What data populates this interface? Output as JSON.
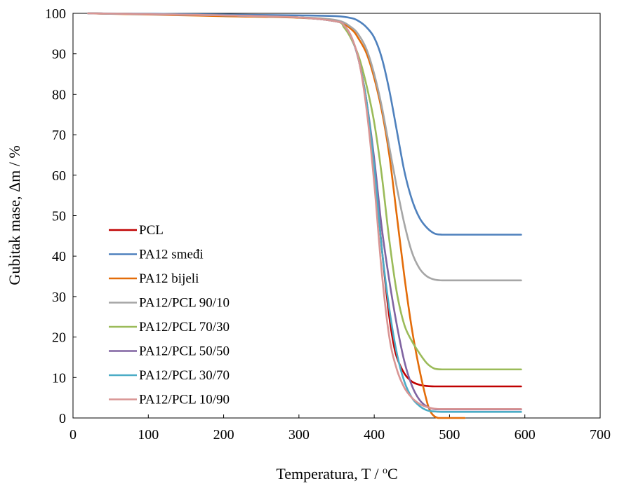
{
  "chart_data": {
    "type": "line",
    "title": "",
    "xlabel": "Temperatura, T / ",
    "xlabel_unit": "C",
    "xlabel_superscript": "o",
    "ylabel": "Gubitak mase, Δm / %",
    "xlim": [
      0,
      700
    ],
    "ylim": [
      0,
      100
    ],
    "xticks": [
      0,
      100,
      200,
      300,
      400,
      500,
      600,
      700
    ],
    "yticks": [
      0,
      10,
      20,
      30,
      40,
      50,
      60,
      70,
      80,
      90,
      100
    ],
    "grid": false,
    "legend_position": "lower-left",
    "series": [
      {
        "name": "PCL",
        "color": "#c00000",
        "x": [
          20,
          100,
          200,
          300,
          350,
          360,
          370,
          380,
          390,
          400,
          405,
          410,
          415,
          420,
          425,
          430,
          440,
          450,
          460,
          470,
          480,
          500,
          550,
          595
        ],
        "y": [
          100,
          99.8,
          99.5,
          99,
          98,
          97,
          94,
          88,
          78,
          62,
          52,
          42,
          33,
          25,
          19,
          15,
          11,
          9,
          8.2,
          7.9,
          7.8,
          7.8,
          7.8,
          7.8
        ]
      },
      {
        "name": "PA12 smeđi",
        "color": "#4f81bd",
        "x": [
          20,
          100,
          200,
          300,
          350,
          370,
          380,
          390,
          400,
          410,
          420,
          430,
          440,
          450,
          460,
          470,
          480,
          490,
          500,
          550,
          595
        ],
        "y": [
          100,
          99.9,
          99.7,
          99.5,
          99.3,
          98.8,
          98,
          96.5,
          94,
          89,
          81,
          71,
          61,
          54,
          49.5,
          47,
          45.6,
          45.3,
          45.3,
          45.3,
          45.3
        ]
      },
      {
        "name": "PA12 bijeli",
        "color": "#e36c09",
        "x": [
          20,
          100,
          200,
          300,
          350,
          370,
          380,
          390,
          400,
          410,
          420,
          430,
          440,
          450,
          460,
          470,
          475,
          480,
          485,
          490,
          500,
          520
        ],
        "y": [
          100,
          99.7,
          99.3,
          98.9,
          98,
          96,
          93.5,
          90,
          84,
          76,
          65,
          50,
          35,
          22,
          12,
          4,
          1.5,
          0.4,
          0,
          0,
          0,
          0
        ]
      },
      {
        "name": "PA12/PCL 90/10",
        "color": "#a6a6a6",
        "x": [
          20,
          100,
          200,
          300,
          350,
          370,
          380,
          390,
          400,
          410,
          420,
          430,
          440,
          450,
          460,
          470,
          480,
          490,
          500,
          550,
          595
        ],
        "y": [
          100,
          99.8,
          99.5,
          99,
          98.3,
          96.5,
          94.5,
          91,
          85,
          77,
          67,
          57,
          48,
          41,
          37,
          35,
          34.2,
          34,
          34,
          34,
          34
        ]
      },
      {
        "name": "PA12/PCL 70/30",
        "color": "#9bbb59",
        "x": [
          20,
          100,
          200,
          300,
          350,
          360,
          370,
          380,
          390,
          400,
          410,
          420,
          430,
          440,
          450,
          460,
          470,
          480,
          490,
          500,
          550,
          595
        ],
        "y": [
          100,
          99.8,
          99.5,
          99,
          98,
          96.5,
          93.5,
          89,
          82,
          73,
          60,
          44,
          31,
          23,
          19,
          16,
          13.5,
          12.2,
          12,
          12,
          12,
          12
        ]
      },
      {
        "name": "PA12/PCL 50/50",
        "color": "#8064a2",
        "x": [
          20,
          100,
          200,
          300,
          350,
          360,
          370,
          380,
          390,
          400,
          410,
          420,
          430,
          440,
          450,
          460,
          470,
          480,
          490,
          500,
          550,
          595
        ],
        "y": [
          100,
          99.8,
          99.5,
          99,
          98,
          97,
          94,
          88,
          78,
          64,
          47,
          34,
          23,
          14,
          8,
          4.5,
          2.8,
          2.2,
          2.1,
          2.1,
          2.1,
          2.1
        ]
      },
      {
        "name": "PA12/PCL 30/70",
        "color": "#4bacc6",
        "x": [
          20,
          100,
          200,
          300,
          350,
          360,
          370,
          380,
          390,
          400,
          410,
          420,
          430,
          440,
          450,
          460,
          470,
          480,
          490,
          500,
          550,
          595
        ],
        "y": [
          100,
          99.8,
          99.5,
          99,
          98,
          97,
          94,
          88,
          78,
          62,
          42,
          27,
          16,
          9,
          5,
          3,
          1.9,
          1.6,
          1.5,
          1.5,
          1.5,
          1.5
        ]
      },
      {
        "name": "PA12/PCL 10/90",
        "color": "#d99594",
        "x": [
          20,
          100,
          200,
          300,
          350,
          360,
          370,
          380,
          390,
          400,
          410,
          420,
          430,
          440,
          450,
          460,
          470,
          480,
          490,
          500,
          550,
          595
        ],
        "y": [
          100,
          99.8,
          99.5,
          99,
          98,
          97,
          94,
          88,
          76,
          58,
          36,
          20,
          12,
          7.5,
          5,
          3.5,
          2.7,
          2.3,
          2.2,
          2.2,
          2.2,
          2.2
        ]
      }
    ]
  }
}
